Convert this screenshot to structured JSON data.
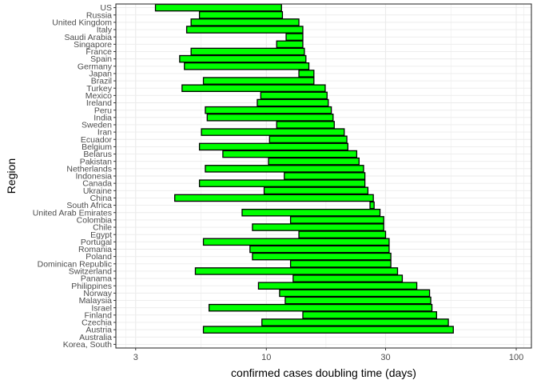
{
  "chart_data": {
    "type": "bar",
    "subtype": "floating-horizontal-bar",
    "title": "",
    "xlabel": "confirmed cases doubling time (days)",
    "ylabel": "Region",
    "x_scale": "log10",
    "xlim": [
      2.5,
      115
    ],
    "x_ticks": [
      3,
      10,
      30,
      100
    ],
    "x_tick_labels": [
      "3",
      "10",
      "30",
      "100"
    ],
    "grid": true,
    "bar_fill": "#00ff00",
    "bar_outline": "#000000",
    "categories": [
      "US",
      "Russia",
      "United Kingdom",
      "Italy",
      "Saudi Arabia",
      "Singapore",
      "France",
      "Spain",
      "Germany",
      "Japan",
      "Brazil",
      "Turkey",
      "Mexico",
      "Ireland",
      "Peru",
      "India",
      "Sweden",
      "Iran",
      "Ecuador",
      "Belgium",
      "Belarus",
      "Pakistan",
      "Netherlands",
      "Indonesia",
      "Canada",
      "Ukraine",
      "China",
      "South Africa",
      "United Arab Emirates",
      "Colombia",
      "Chile",
      "Egypt",
      "Portugal",
      "Romania",
      "Poland",
      "Dominican Republic",
      "Switzerland",
      "Panama",
      "Philippines",
      "Norway",
      "Malaysia",
      "Israel",
      "Finland",
      "Czechia",
      "Austria",
      "Australia",
      "Korea, South"
    ],
    "ranges": [
      [
        3.6,
        11.5
      ],
      [
        5.4,
        11.6
      ],
      [
        5.0,
        13.5
      ],
      [
        4.8,
        14.0
      ],
      [
        12.0,
        14.0
      ],
      [
        11.0,
        14.0
      ],
      [
        5.0,
        14.2
      ],
      [
        4.5,
        14.4
      ],
      [
        4.7,
        14.8
      ],
      [
        13.5,
        15.5
      ],
      [
        5.6,
        15.5
      ],
      [
        4.6,
        17.2
      ],
      [
        9.5,
        17.5
      ],
      [
        9.2,
        17.7
      ],
      [
        5.7,
        18.2
      ],
      [
        5.8,
        18.5
      ],
      [
        11.0,
        18.7
      ],
      [
        5.5,
        20.5
      ],
      [
        10.3,
        21.0
      ],
      [
        5.4,
        21.2
      ],
      [
        6.7,
        23.0
      ],
      [
        10.2,
        23.5
      ],
      [
        5.7,
        24.5
      ],
      [
        11.8,
        24.8
      ],
      [
        5.4,
        24.8
      ],
      [
        9.8,
        25.5
      ],
      [
        4.3,
        26.8
      ],
      [
        26.0,
        27.0
      ],
      [
        8.0,
        28.5
      ],
      [
        12.5,
        29.5
      ],
      [
        8.8,
        29.5
      ],
      [
        13.5,
        30.0
      ],
      [
        5.6,
        31.0
      ],
      [
        8.6,
        31.0
      ],
      [
        8.8,
        31.5
      ],
      [
        12.5,
        31.5
      ],
      [
        5.2,
        33.5
      ],
      [
        12.8,
        35.0
      ],
      [
        9.3,
        40.0
      ],
      [
        11.3,
        45.0
      ],
      [
        11.9,
        45.5
      ],
      [
        5.9,
        46.0
      ],
      [
        14.0,
        48.0
      ],
      [
        9.6,
        53.5
      ],
      [
        5.6,
        56.0
      ],
      null,
      null
    ]
  }
}
